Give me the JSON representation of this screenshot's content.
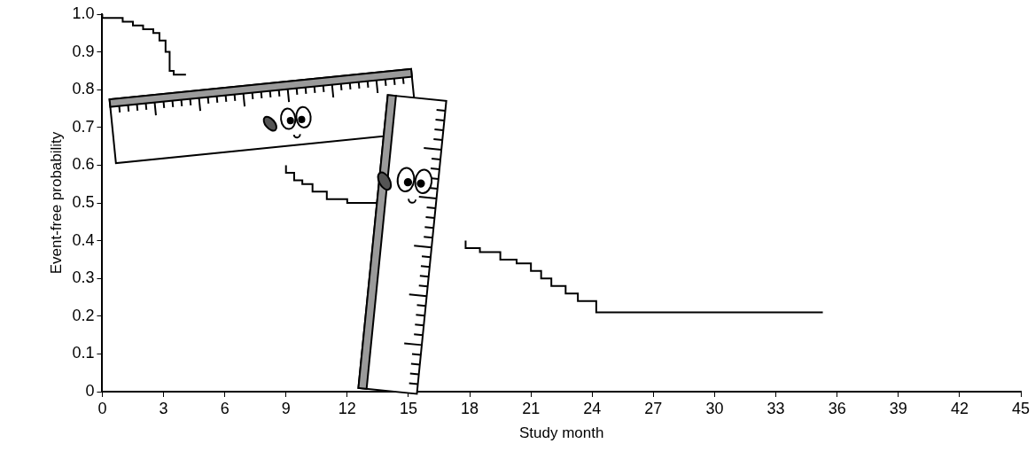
{
  "chart_data": {
    "type": "line",
    "x_label": "Study month",
    "y_label": "Event-free probability",
    "x": [
      0,
      1,
      1.5,
      2,
      2.5,
      2.8,
      3.1,
      3.3,
      3.5,
      3.7,
      4.1,
      6,
      9,
      9.4,
      9.8,
      10.3,
      11,
      12,
      13,
      13.6,
      15,
      17.8,
      18.5,
      19.5,
      20.3,
      21,
      21.5,
      22,
      22.7,
      23.3,
      24.2,
      28.7,
      35.3
    ],
    "values": [
      1,
      0.99,
      0.98,
      0.97,
      0.96,
      0.95,
      0.93,
      0.9,
      0.85,
      0.84,
      0.84,
      null,
      0.6,
      0.58,
      0.56,
      0.55,
      0.53,
      0.51,
      0.5,
      0.5,
      null,
      0.4,
      0.38,
      0.37,
      0.35,
      0.34,
      0.32,
      0.3,
      0.28,
      0.26,
      0.24,
      0.21,
      0.21
    ],
    "color": "#000000",
    "line_style": "steps",
    "xlim": [
      0,
      45
    ],
    "xticks": [
      0,
      3,
      6,
      9,
      12,
      15,
      18,
      21,
      24,
      27,
      30,
      33,
      36,
      39,
      42,
      45
    ],
    "ylim": [
      0,
      1
    ],
    "yticks": [
      0,
      0.1,
      0.2,
      0.3,
      0.4,
      0.5,
      0.6,
      0.7,
      0.8,
      0.9,
      {
        "value": 1,
        "label": "1.0"
      }
    ],
    "grid": false
  }
}
